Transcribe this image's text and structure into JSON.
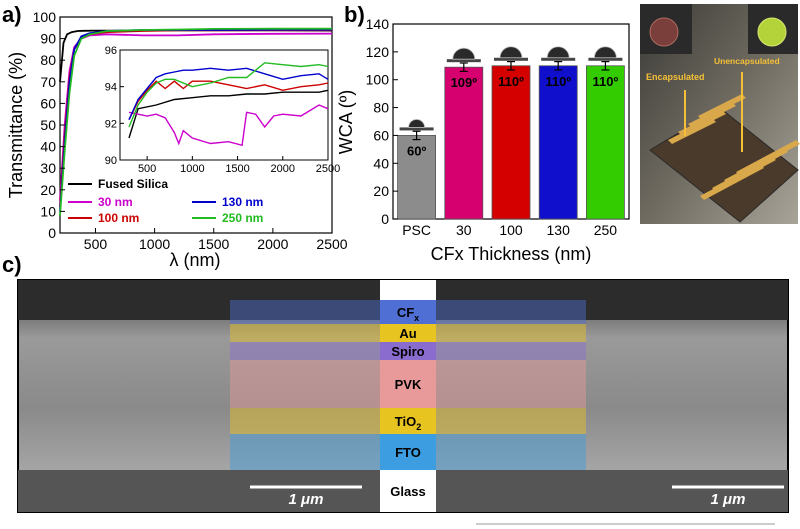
{
  "panels": {
    "a": "a)",
    "b": "b)",
    "c": "c)"
  },
  "chart_data": [
    {
      "type": "line",
      "panel": "a",
      "xlabel": "λ (nm)",
      "ylabel": "Transmittance (%)",
      "xlim": [
        200,
        2500
      ],
      "ylim": [
        0,
        100
      ],
      "xticks": [
        500,
        1000,
        1500,
        2000,
        2500
      ],
      "yticks": [
        0,
        10,
        20,
        30,
        40,
        50,
        60,
        70,
        80,
        90,
        100
      ],
      "legend_position": "bottom",
      "series": [
        {
          "name": "Fused Silica",
          "color": "#000000",
          "x": [
            200,
            230,
            260,
            300,
            350,
            400,
            500,
            700,
            1000,
            1500,
            2000,
            2500
          ],
          "y": [
            70,
            88,
            92,
            93,
            93.5,
            93.6,
            93.7,
            93.7,
            93.8,
            93.8,
            93.8,
            93.7
          ]
        },
        {
          "name": "30 nm",
          "color": "#cc00cc",
          "x": [
            200,
            240,
            280,
            320,
            380,
            450,
            600,
            900,
            1200,
            1500,
            2000,
            2500
          ],
          "y": [
            15,
            50,
            75,
            86,
            90,
            91.5,
            92,
            91.5,
            91.5,
            92,
            92.2,
            92.3
          ]
        },
        {
          "name": "100 nm",
          "color": "#cc0000",
          "x": [
            200,
            240,
            280,
            320,
            380,
            450,
            600,
            900,
            1200,
            1500,
            2000,
            2500
          ],
          "y": [
            12,
            45,
            72,
            85,
            90,
            92,
            93,
            93.5,
            93.8,
            93.8,
            93.9,
            93.9
          ]
        },
        {
          "name": "130 nm",
          "color": "#0000cc",
          "x": [
            200,
            240,
            280,
            320,
            380,
            450,
            600,
            900,
            1200,
            1500,
            2000,
            2500
          ],
          "y": [
            10,
            42,
            70,
            85,
            91,
            92.5,
            93.5,
            94,
            94,
            94,
            94.1,
            94.1
          ]
        },
        {
          "name": "250 nm",
          "color": "#22bb22",
          "x": [
            200,
            240,
            280,
            320,
            380,
            450,
            600,
            900,
            1200,
            1500,
            2000,
            2500
          ],
          "y": [
            8,
            38,
            65,
            82,
            90,
            92,
            93.5,
            94,
            94.2,
            94.5,
            94.6,
            94.6
          ]
        }
      ],
      "inset": {
        "xlim": [
          200,
          2500
        ],
        "ylim": [
          90,
          96
        ],
        "xticks": [
          500,
          1000,
          1500,
          2000,
          2500
        ],
        "yticks": [
          90,
          92,
          94,
          96
        ],
        "series": [
          {
            "name": "Fused Silica",
            "color": "#000000",
            "x": [
              300,
              400,
              600,
              800,
              1000,
              1200,
              1400,
              1600,
              1800,
              2000,
              2200,
              2400,
              2500
            ],
            "y": [
              91.2,
              92.8,
              93,
              93.3,
              93.4,
              93.5,
              93.5,
              93.6,
              93.6,
              93.7,
              93.7,
              93.7,
              93.8
            ]
          },
          {
            "name": "30 nm",
            "color": "#cc00cc",
            "x": [
              300,
              400,
              500,
              600,
              700,
              800,
              850,
              900,
              1000,
              1200,
              1400,
              1550,
              1600,
              1700,
              1800,
              1900,
              2000,
              2200,
              2400,
              2500
            ],
            "y": [
              92.6,
              92.5,
              92.4,
              92.5,
              92.3,
              91.5,
              90.9,
              91.6,
              91.2,
              90.9,
              91,
              90.8,
              92.6,
              92.5,
              91.8,
              92.4,
              92.5,
              92.4,
              93,
              92.8
            ]
          },
          {
            "name": "100 nm",
            "color": "#cc0000",
            "x": [
              300,
              400,
              500,
              600,
              700,
              800,
              900,
              1000,
              1200,
              1400,
              1600,
              1800,
              2000,
              2200,
              2400,
              2500
            ],
            "y": [
              92.2,
              93.2,
              93.8,
              94.3,
              93.9,
              94.3,
              93.9,
              94.3,
              94.3,
              94.1,
              93.9,
              94.1,
              93.8,
              94,
              94.1,
              94.2
            ]
          },
          {
            "name": "130 nm",
            "color": "#0000cc",
            "x": [
              300,
              400,
              500,
              600,
              700,
              800,
              900,
              1000,
              1200,
              1400,
              1600,
              1800,
              2000,
              2200,
              2400,
              2500
            ],
            "y": [
              92.2,
              93.3,
              93.9,
              94.5,
              94.7,
              94.8,
              94.9,
              94.9,
              95,
              94.9,
              95,
              94.7,
              94.4,
              94.6,
              94.7,
              94.4
            ]
          },
          {
            "name": "250 nm",
            "color": "#22bb22",
            "x": [
              300,
              400,
              500,
              600,
              700,
              800,
              900,
              1000,
              1200,
              1400,
              1600,
              1800,
              2000,
              2200,
              2400,
              2500
            ],
            "y": [
              91.8,
              93,
              93.7,
              94.2,
              94.4,
              94.4,
              94.2,
              94,
              94.2,
              94.5,
              94.5,
              95.3,
              95.2,
              95.1,
              95.2,
              95.1
            ]
          }
        ]
      }
    },
    {
      "type": "bar",
      "panel": "b",
      "xlabel": "CFx Thickness (nm)",
      "ylabel": "WCA (º)",
      "ylim": [
        0,
        140
      ],
      "yticks": [
        0,
        20,
        40,
        60,
        80,
        100,
        120,
        140
      ],
      "categories": [
        "PSC",
        "30",
        "100",
        "130",
        "250"
      ],
      "values": [
        60,
        109,
        110,
        110,
        110
      ],
      "errors": [
        3,
        3,
        3,
        3,
        3
      ],
      "labels": [
        "60º",
        "109º",
        "110º",
        "110º",
        "110º"
      ],
      "colors": [
        "#8c8c8c",
        "#d6006e",
        "#d40000",
        "#1010cc",
        "#33cc00"
      ]
    }
  ],
  "photo": {
    "encapsulated": "Encapsulated",
    "unencapsulated": "Unencapsulated"
  },
  "sem": {
    "layers": [
      {
        "label": "CF",
        "sub": "x",
        "color": "#4f6fd4"
      },
      {
        "label": "Au",
        "sub": "",
        "color": "#e8c420"
      },
      {
        "label": "Spiro",
        "sub": "",
        "color": "#8a6ccf"
      },
      {
        "label": "PVK",
        "sub": "",
        "color": "#e89a9a"
      },
      {
        "label": "TiO",
        "sub": "2",
        "color": "#e8c420"
      },
      {
        "label": "FTO",
        "sub": "",
        "color": "#3c9ee0"
      },
      {
        "label": "Glass",
        "sub": "",
        "color": "#ffffff"
      }
    ],
    "scale_left": "1 μm",
    "scale_right": "1 μm"
  }
}
